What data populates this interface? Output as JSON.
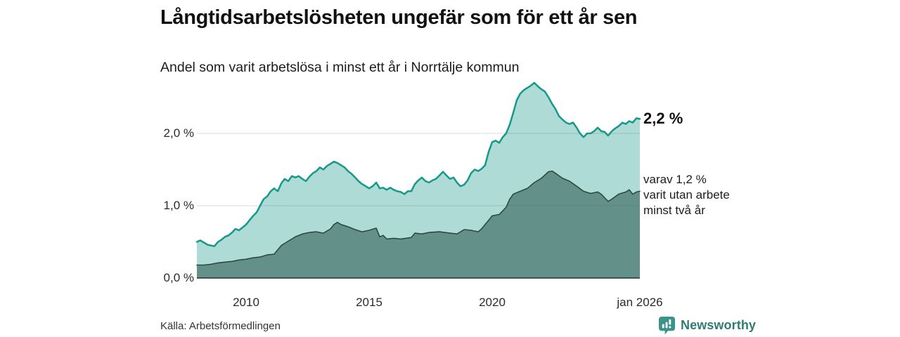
{
  "header": {
    "title": "Långtidsarbetslösheten ungefär som för ett år sen",
    "subtitle": "Andel som varit arbetslösa i minst ett år i Norrtälje kommun"
  },
  "annotations": {
    "latest_value_label": "2,2 %",
    "secondary_lines": [
      "varav 1,2 %",
      "varit utan arbete",
      "minst två år"
    ]
  },
  "footer": {
    "source": "Källa: Arbetsförmedlingen",
    "brand": "Newsworthy"
  },
  "colors": {
    "accent_line": "#16988a",
    "accent_fill": "rgba(22,152,138,0.35)",
    "dark_line": "#2c4a43",
    "dark_fill": "rgba(31,77,68,0.52)",
    "gridline": "#d9d9d9",
    "axis": "#2b2b2b",
    "brand_teal": "#2e7d72",
    "brand_icon": "#3a948a"
  },
  "chart_data": {
    "type": "area",
    "title": "Långtidsarbetslösheten ungefär som för ett år sen",
    "subtitle": "Andel som varit arbetslösa i minst ett år i Norrtälje kommun",
    "xlabel": "",
    "ylabel": "",
    "xlim": [
      2008,
      2026
    ],
    "ylim": [
      0,
      2.9
    ],
    "grid": "horizontal",
    "legend_position": "none",
    "yticks": [
      {
        "value": 0,
        "label": "0,0 %"
      },
      {
        "value": 1,
        "label": "1,0 %"
      },
      {
        "value": 2,
        "label": "2,0 %"
      }
    ],
    "xticks": [
      {
        "value": 2010,
        "label": "2010"
      },
      {
        "value": 2015,
        "label": "2015"
      },
      {
        "value": 2020,
        "label": "2020"
      },
      {
        "value": 2026,
        "label": "jan 2026"
      }
    ],
    "series": [
      {
        "name": "Arbetslösa minst ett år",
        "latest_value_pct": 2.2,
        "points": [
          [
            2008.0,
            0.5
          ],
          [
            2008.14,
            0.52
          ],
          [
            2008.29,
            0.49
          ],
          [
            2008.43,
            0.46
          ],
          [
            2008.57,
            0.45
          ],
          [
            2008.71,
            0.44
          ],
          [
            2008.86,
            0.5
          ],
          [
            2009.0,
            0.53
          ],
          [
            2009.14,
            0.57
          ],
          [
            2009.29,
            0.59
          ],
          [
            2009.43,
            0.63
          ],
          [
            2009.57,
            0.68
          ],
          [
            2009.71,
            0.66
          ],
          [
            2009.86,
            0.7
          ],
          [
            2010.0,
            0.74
          ],
          [
            2010.14,
            0.8
          ],
          [
            2010.29,
            0.86
          ],
          [
            2010.43,
            0.91
          ],
          [
            2010.57,
            1.0
          ],
          [
            2010.71,
            1.09
          ],
          [
            2010.86,
            1.13
          ],
          [
            2011.0,
            1.2
          ],
          [
            2011.14,
            1.24
          ],
          [
            2011.29,
            1.2
          ],
          [
            2011.43,
            1.31
          ],
          [
            2011.57,
            1.37
          ],
          [
            2011.71,
            1.34
          ],
          [
            2011.86,
            1.41
          ],
          [
            2012.0,
            1.39
          ],
          [
            2012.14,
            1.41
          ],
          [
            2012.29,
            1.37
          ],
          [
            2012.43,
            1.34
          ],
          [
            2012.57,
            1.4
          ],
          [
            2012.71,
            1.45
          ],
          [
            2012.86,
            1.48
          ],
          [
            2013.0,
            1.53
          ],
          [
            2013.14,
            1.5
          ],
          [
            2013.29,
            1.55
          ],
          [
            2013.43,
            1.58
          ],
          [
            2013.57,
            1.61
          ],
          [
            2013.71,
            1.59
          ],
          [
            2013.86,
            1.56
          ],
          [
            2014.0,
            1.53
          ],
          [
            2014.14,
            1.48
          ],
          [
            2014.29,
            1.44
          ],
          [
            2014.43,
            1.39
          ],
          [
            2014.57,
            1.34
          ],
          [
            2014.71,
            1.3
          ],
          [
            2014.86,
            1.27
          ],
          [
            2015.0,
            1.24
          ],
          [
            2015.14,
            1.27
          ],
          [
            2015.29,
            1.32
          ],
          [
            2015.43,
            1.24
          ],
          [
            2015.57,
            1.25
          ],
          [
            2015.71,
            1.22
          ],
          [
            2015.86,
            1.25
          ],
          [
            2016.0,
            1.22
          ],
          [
            2016.14,
            1.2
          ],
          [
            2016.29,
            1.19
          ],
          [
            2016.43,
            1.16
          ],
          [
            2016.57,
            1.2
          ],
          [
            2016.71,
            1.2
          ],
          [
            2016.86,
            1.3
          ],
          [
            2017.0,
            1.35
          ],
          [
            2017.14,
            1.39
          ],
          [
            2017.29,
            1.34
          ],
          [
            2017.43,
            1.32
          ],
          [
            2017.57,
            1.35
          ],
          [
            2017.71,
            1.37
          ],
          [
            2017.86,
            1.42
          ],
          [
            2018.0,
            1.47
          ],
          [
            2018.14,
            1.42
          ],
          [
            2018.29,
            1.37
          ],
          [
            2018.43,
            1.39
          ],
          [
            2018.57,
            1.32
          ],
          [
            2018.71,
            1.27
          ],
          [
            2018.86,
            1.29
          ],
          [
            2019.0,
            1.35
          ],
          [
            2019.14,
            1.45
          ],
          [
            2019.29,
            1.5
          ],
          [
            2019.43,
            1.48
          ],
          [
            2019.57,
            1.51
          ],
          [
            2019.71,
            1.56
          ],
          [
            2019.86,
            1.75
          ],
          [
            2020.0,
            1.88
          ],
          [
            2020.14,
            1.9
          ],
          [
            2020.29,
            1.87
          ],
          [
            2020.43,
            1.95
          ],
          [
            2020.57,
            2.0
          ],
          [
            2020.71,
            2.12
          ],
          [
            2020.86,
            2.29
          ],
          [
            2021.0,
            2.46
          ],
          [
            2021.14,
            2.55
          ],
          [
            2021.29,
            2.6
          ],
          [
            2021.43,
            2.63
          ],
          [
            2021.57,
            2.66
          ],
          [
            2021.71,
            2.7
          ],
          [
            2021.86,
            2.65
          ],
          [
            2022.0,
            2.61
          ],
          [
            2022.14,
            2.58
          ],
          [
            2022.29,
            2.5
          ],
          [
            2022.43,
            2.41
          ],
          [
            2022.57,
            2.34
          ],
          [
            2022.71,
            2.24
          ],
          [
            2022.86,
            2.19
          ],
          [
            2023.0,
            2.15
          ],
          [
            2023.14,
            2.13
          ],
          [
            2023.29,
            2.15
          ],
          [
            2023.43,
            2.08
          ],
          [
            2023.57,
            2.0
          ],
          [
            2023.71,
            1.95
          ],
          [
            2023.86,
            2.0
          ],
          [
            2024.0,
            2.0
          ],
          [
            2024.14,
            2.03
          ],
          [
            2024.29,
            2.08
          ],
          [
            2024.43,
            2.03
          ],
          [
            2024.57,
            2.02
          ],
          [
            2024.71,
            1.97
          ],
          [
            2024.86,
            2.03
          ],
          [
            2025.0,
            2.07
          ],
          [
            2025.14,
            2.1
          ],
          [
            2025.29,
            2.15
          ],
          [
            2025.43,
            2.13
          ],
          [
            2025.57,
            2.17
          ],
          [
            2025.71,
            2.15
          ],
          [
            2025.86,
            2.21
          ],
          [
            2026.0,
            2.2
          ]
        ]
      },
      {
        "name": "varav arbetslösa minst två år",
        "latest_value_pct": 1.2,
        "points": [
          [
            2008.0,
            0.18
          ],
          [
            2008.29,
            0.18
          ],
          [
            2008.57,
            0.19
          ],
          [
            2008.86,
            0.21
          ],
          [
            2009.14,
            0.22
          ],
          [
            2009.43,
            0.23
          ],
          [
            2009.71,
            0.25
          ],
          [
            2010.0,
            0.26
          ],
          [
            2010.29,
            0.28
          ],
          [
            2010.57,
            0.29
          ],
          [
            2010.86,
            0.32
          ],
          [
            2011.14,
            0.33
          ],
          [
            2011.43,
            0.45
          ],
          [
            2011.71,
            0.51
          ],
          [
            2012.0,
            0.57
          ],
          [
            2012.29,
            0.61
          ],
          [
            2012.57,
            0.63
          ],
          [
            2012.86,
            0.64
          ],
          [
            2013.14,
            0.62
          ],
          [
            2013.43,
            0.68
          ],
          [
            2013.57,
            0.74
          ],
          [
            2013.71,
            0.77
          ],
          [
            2013.86,
            0.74
          ],
          [
            2014.14,
            0.71
          ],
          [
            2014.43,
            0.67
          ],
          [
            2014.71,
            0.64
          ],
          [
            2015.0,
            0.66
          ],
          [
            2015.29,
            0.69
          ],
          [
            2015.43,
            0.57
          ],
          [
            2015.57,
            0.59
          ],
          [
            2015.71,
            0.54
          ],
          [
            2016.0,
            0.55
          ],
          [
            2016.29,
            0.54
          ],
          [
            2016.71,
            0.56
          ],
          [
            2016.86,
            0.62
          ],
          [
            2017.14,
            0.61
          ],
          [
            2017.43,
            0.63
          ],
          [
            2017.86,
            0.64
          ],
          [
            2018.29,
            0.62
          ],
          [
            2018.57,
            0.61
          ],
          [
            2018.86,
            0.67
          ],
          [
            2019.14,
            0.66
          ],
          [
            2019.43,
            0.64
          ],
          [
            2019.57,
            0.68
          ],
          [
            2019.71,
            0.74
          ],
          [
            2019.86,
            0.8
          ],
          [
            2020.0,
            0.86
          ],
          [
            2020.29,
            0.88
          ],
          [
            2020.43,
            0.93
          ],
          [
            2020.57,
            0.98
          ],
          [
            2020.71,
            1.09
          ],
          [
            2020.86,
            1.16
          ],
          [
            2021.14,
            1.2
          ],
          [
            2021.43,
            1.24
          ],
          [
            2021.71,
            1.32
          ],
          [
            2022.0,
            1.38
          ],
          [
            2022.29,
            1.47
          ],
          [
            2022.43,
            1.48
          ],
          [
            2022.57,
            1.45
          ],
          [
            2022.86,
            1.38
          ],
          [
            2023.14,
            1.34
          ],
          [
            2023.43,
            1.27
          ],
          [
            2023.71,
            1.2
          ],
          [
            2024.0,
            1.17
          ],
          [
            2024.29,
            1.19
          ],
          [
            2024.43,
            1.16
          ],
          [
            2024.57,
            1.11
          ],
          [
            2024.71,
            1.06
          ],
          [
            2024.86,
            1.09
          ],
          [
            2025.14,
            1.16
          ],
          [
            2025.43,
            1.19
          ],
          [
            2025.57,
            1.22
          ],
          [
            2025.71,
            1.16
          ],
          [
            2025.86,
            1.19
          ],
          [
            2026.0,
            1.2
          ]
        ]
      }
    ]
  }
}
